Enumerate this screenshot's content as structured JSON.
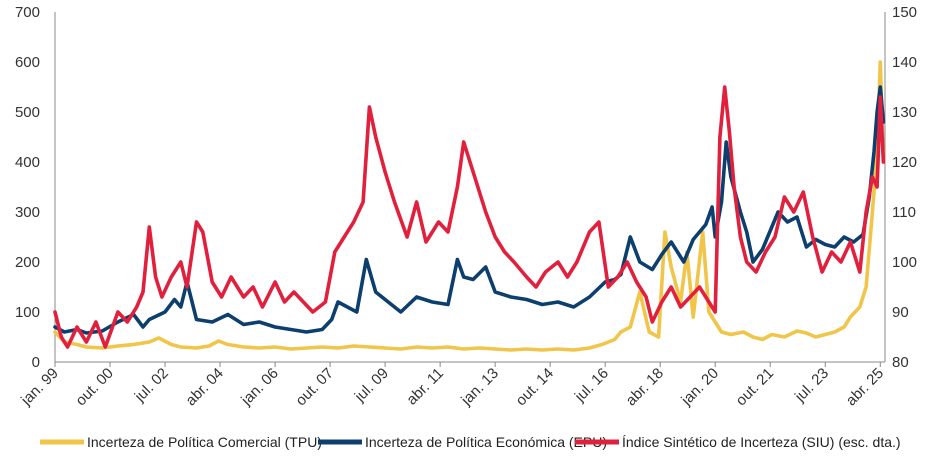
{
  "chart_data": {
    "type": "line",
    "title": "",
    "xlabel": "",
    "ylabel": "",
    "grid": false,
    "legend_position": "bottom",
    "x_tick_labels": [
      "jan. 99",
      "out. 00",
      "jul. 02",
      "abr. 04",
      "jan. 06",
      "out. 07",
      "jul. 09",
      "abr. 11",
      "jan. 13",
      "out. 14",
      "jul. 16",
      "abr. 18",
      "jan. 20",
      "out. 21",
      "jul. 23",
      "abr. 25"
    ],
    "x_tick_years": [
      1999.0,
      2000.75,
      2002.5,
      2004.25,
      2006.0,
      2007.75,
      2009.5,
      2011.25,
      2013.0,
      2014.75,
      2016.5,
      2018.25,
      2020.0,
      2021.75,
      2023.5,
      2025.25
    ],
    "x_range": [
      1999.0,
      2025.4
    ],
    "y_left": {
      "ticks": [
        0,
        100,
        200,
        300,
        400,
        500,
        600,
        700
      ],
      "range": [
        0,
        700
      ]
    },
    "y_right": {
      "ticks": [
        80,
        90,
        100,
        110,
        120,
        130,
        140,
        150
      ],
      "range": [
        80,
        150
      ],
      "label": "esc. dta."
    },
    "series": [
      {
        "name": "Incerteza de Política Comercial (TPU)",
        "axis": "left",
        "color": "#f0c54a",
        "points": [
          [
            1999.0,
            60
          ],
          [
            1999.3,
            40
          ],
          [
            1999.7,
            35
          ],
          [
            2000.0,
            30
          ],
          [
            2000.5,
            28
          ],
          [
            2001.0,
            32
          ],
          [
            2001.5,
            35
          ],
          [
            2002.0,
            40
          ],
          [
            2002.3,
            48
          ],
          [
            2002.7,
            35
          ],
          [
            2003.0,
            30
          ],
          [
            2003.5,
            28
          ],
          [
            2003.9,
            32
          ],
          [
            2004.2,
            42
          ],
          [
            2004.5,
            35
          ],
          [
            2005.0,
            30
          ],
          [
            2005.5,
            28
          ],
          [
            2006.0,
            30
          ],
          [
            2006.5,
            26
          ],
          [
            2007.0,
            28
          ],
          [
            2007.5,
            30
          ],
          [
            2008.0,
            28
          ],
          [
            2008.5,
            32
          ],
          [
            2009.0,
            30
          ],
          [
            2009.5,
            28
          ],
          [
            2010.0,
            26
          ],
          [
            2010.5,
            30
          ],
          [
            2011.0,
            28
          ],
          [
            2011.5,
            30
          ],
          [
            2012.0,
            26
          ],
          [
            2012.5,
            28
          ],
          [
            2013.0,
            26
          ],
          [
            2013.5,
            24
          ],
          [
            2014.0,
            26
          ],
          [
            2014.5,
            24
          ],
          [
            2015.0,
            26
          ],
          [
            2015.5,
            24
          ],
          [
            2016.0,
            28
          ],
          [
            2016.4,
            35
          ],
          [
            2016.8,
            45
          ],
          [
            2017.0,
            60
          ],
          [
            2017.3,
            70
          ],
          [
            2017.6,
            140
          ],
          [
            2017.9,
            60
          ],
          [
            2018.2,
            50
          ],
          [
            2018.4,
            260
          ],
          [
            2018.6,
            190
          ],
          [
            2018.9,
            120
          ],
          [
            2019.1,
            220
          ],
          [
            2019.3,
            90
          ],
          [
            2019.6,
            260
          ],
          [
            2019.8,
            100
          ],
          [
            2020.0,
            80
          ],
          [
            2020.2,
            60
          ],
          [
            2020.5,
            55
          ],
          [
            2020.9,
            60
          ],
          [
            2021.2,
            50
          ],
          [
            2021.5,
            45
          ],
          [
            2021.8,
            55
          ],
          [
            2022.2,
            50
          ],
          [
            2022.6,
            62
          ],
          [
            2022.9,
            58
          ],
          [
            2023.2,
            50
          ],
          [
            2023.5,
            55
          ],
          [
            2023.8,
            60
          ],
          [
            2024.1,
            70
          ],
          [
            2024.3,
            90
          ],
          [
            2024.6,
            110
          ],
          [
            2024.8,
            150
          ],
          [
            2025.0,
            300
          ],
          [
            2025.15,
            420
          ],
          [
            2025.25,
            600
          ],
          [
            2025.35,
            400
          ]
        ]
      },
      {
        "name": "Incerteza de Política Económica (EPU)",
        "axis": "left",
        "color": "#0d3f6e",
        "points": [
          [
            1999.0,
            70
          ],
          [
            1999.3,
            60
          ],
          [
            1999.7,
            65
          ],
          [
            2000.0,
            58
          ],
          [
            2000.5,
            62
          ],
          [
            2001.0,
            80
          ],
          [
            2001.5,
            95
          ],
          [
            2001.8,
            70
          ],
          [
            2002.0,
            85
          ],
          [
            2002.5,
            100
          ],
          [
            2002.8,
            125
          ],
          [
            2003.0,
            110
          ],
          [
            2003.2,
            160
          ],
          [
            2003.5,
            85
          ],
          [
            2004.0,
            80
          ],
          [
            2004.5,
            95
          ],
          [
            2005.0,
            75
          ],
          [
            2005.5,
            80
          ],
          [
            2006.0,
            70
          ],
          [
            2006.5,
            65
          ],
          [
            2007.0,
            60
          ],
          [
            2007.5,
            65
          ],
          [
            2007.8,
            85
          ],
          [
            2008.0,
            120
          ],
          [
            2008.3,
            110
          ],
          [
            2008.6,
            100
          ],
          [
            2008.9,
            205
          ],
          [
            2009.2,
            140
          ],
          [
            2009.5,
            125
          ],
          [
            2010.0,
            100
          ],
          [
            2010.5,
            130
          ],
          [
            2011.0,
            120
          ],
          [
            2011.5,
            115
          ],
          [
            2011.8,
            205
          ],
          [
            2012.0,
            170
          ],
          [
            2012.3,
            165
          ],
          [
            2012.7,
            190
          ],
          [
            2013.0,
            140
          ],
          [
            2013.5,
            130
          ],
          [
            2014.0,
            125
          ],
          [
            2014.5,
            115
          ],
          [
            2015.0,
            120
          ],
          [
            2015.5,
            110
          ],
          [
            2016.0,
            130
          ],
          [
            2016.5,
            160
          ],
          [
            2016.8,
            165
          ],
          [
            2017.0,
            175
          ],
          [
            2017.3,
            250
          ],
          [
            2017.6,
            200
          ],
          [
            2018.0,
            185
          ],
          [
            2018.3,
            215
          ],
          [
            2018.6,
            240
          ],
          [
            2019.0,
            200
          ],
          [
            2019.3,
            245
          ],
          [
            2019.7,
            275
          ],
          [
            2019.9,
            310
          ],
          [
            2020.0,
            250
          ],
          [
            2020.2,
            320
          ],
          [
            2020.35,
            440
          ],
          [
            2020.5,
            370
          ],
          [
            2020.8,
            300
          ],
          [
            2021.0,
            260
          ],
          [
            2021.2,
            200
          ],
          [
            2021.5,
            225
          ],
          [
            2021.8,
            270
          ],
          [
            2022.0,
            300
          ],
          [
            2022.3,
            280
          ],
          [
            2022.6,
            290
          ],
          [
            2022.9,
            230
          ],
          [
            2023.2,
            245
          ],
          [
            2023.5,
            235
          ],
          [
            2023.8,
            230
          ],
          [
            2024.1,
            250
          ],
          [
            2024.4,
            240
          ],
          [
            2024.7,
            255
          ],
          [
            2024.9,
            330
          ],
          [
            2025.05,
            420
          ],
          [
            2025.15,
            500
          ],
          [
            2025.25,
            550
          ],
          [
            2025.35,
            480
          ]
        ]
      },
      {
        "name": "Índice Sintético de Incerteza (SIU) (esc. dta.)",
        "axis": "right",
        "color": "#e0203c",
        "points": [
          [
            1999.0,
            90
          ],
          [
            1999.2,
            85
          ],
          [
            1999.4,
            83
          ],
          [
            1999.7,
            87
          ],
          [
            2000.0,
            84
          ],
          [
            2000.3,
            88
          ],
          [
            2000.6,
            83
          ],
          [
            2001.0,
            90
          ],
          [
            2001.3,
            88
          ],
          [
            2001.6,
            91
          ],
          [
            2001.8,
            94
          ],
          [
            2002.0,
            107
          ],
          [
            2002.2,
            97
          ],
          [
            2002.4,
            93
          ],
          [
            2002.7,
            97
          ],
          [
            2003.0,
            100
          ],
          [
            2003.2,
            95
          ],
          [
            2003.5,
            108
          ],
          [
            2003.7,
            106
          ],
          [
            2004.0,
            96
          ],
          [
            2004.3,
            93
          ],
          [
            2004.6,
            97
          ],
          [
            2005.0,
            93
          ],
          [
            2005.3,
            95
          ],
          [
            2005.6,
            91
          ],
          [
            2006.0,
            96
          ],
          [
            2006.3,
            92
          ],
          [
            2006.6,
            94
          ],
          [
            2006.9,
            92
          ],
          [
            2007.2,
            90
          ],
          [
            2007.6,
            92
          ],
          [
            2007.9,
            102
          ],
          [
            2008.2,
            105
          ],
          [
            2008.5,
            108
          ],
          [
            2008.8,
            112
          ],
          [
            2009.0,
            131
          ],
          [
            2009.2,
            125
          ],
          [
            2009.5,
            118
          ],
          [
            2009.8,
            112
          ],
          [
            2010.2,
            105
          ],
          [
            2010.5,
            112
          ],
          [
            2010.8,
            104
          ],
          [
            2011.2,
            108
          ],
          [
            2011.5,
            106
          ],
          [
            2011.8,
            115
          ],
          [
            2012.0,
            124
          ],
          [
            2012.2,
            120
          ],
          [
            2012.4,
            116
          ],
          [
            2012.7,
            110
          ],
          [
            2013.0,
            105
          ],
          [
            2013.3,
            102
          ],
          [
            2013.6,
            100
          ],
          [
            2014.0,
            97
          ],
          [
            2014.3,
            95
          ],
          [
            2014.6,
            98
          ],
          [
            2015.0,
            100
          ],
          [
            2015.3,
            97
          ],
          [
            2015.6,
            100
          ],
          [
            2016.0,
            106
          ],
          [
            2016.3,
            108
          ],
          [
            2016.6,
            95
          ],
          [
            2016.9,
            97
          ],
          [
            2017.2,
            100
          ],
          [
            2017.5,
            96
          ],
          [
            2017.8,
            93
          ],
          [
            2018.0,
            88
          ],
          [
            2018.3,
            92
          ],
          [
            2018.6,
            95
          ],
          [
            2018.9,
            91
          ],
          [
            2019.2,
            93
          ],
          [
            2019.5,
            95
          ],
          [
            2019.8,
            92
          ],
          [
            2020.0,
            90
          ],
          [
            2020.15,
            125
          ],
          [
            2020.3,
            135
          ],
          [
            2020.45,
            126
          ],
          [
            2020.6,
            115
          ],
          [
            2020.8,
            105
          ],
          [
            2021.0,
            100
          ],
          [
            2021.3,
            98
          ],
          [
            2021.6,
            102
          ],
          [
            2021.9,
            105
          ],
          [
            2022.2,
            113
          ],
          [
            2022.5,
            110
          ],
          [
            2022.8,
            114
          ],
          [
            2023.1,
            105
          ],
          [
            2023.4,
            98
          ],
          [
            2023.7,
            102
          ],
          [
            2024.0,
            100
          ],
          [
            2024.3,
            104
          ],
          [
            2024.6,
            98
          ],
          [
            2024.8,
            110
          ],
          [
            2025.0,
            117
          ],
          [
            2025.15,
            115
          ],
          [
            2025.25,
            133
          ],
          [
            2025.35,
            120
          ]
        ]
      }
    ]
  }
}
